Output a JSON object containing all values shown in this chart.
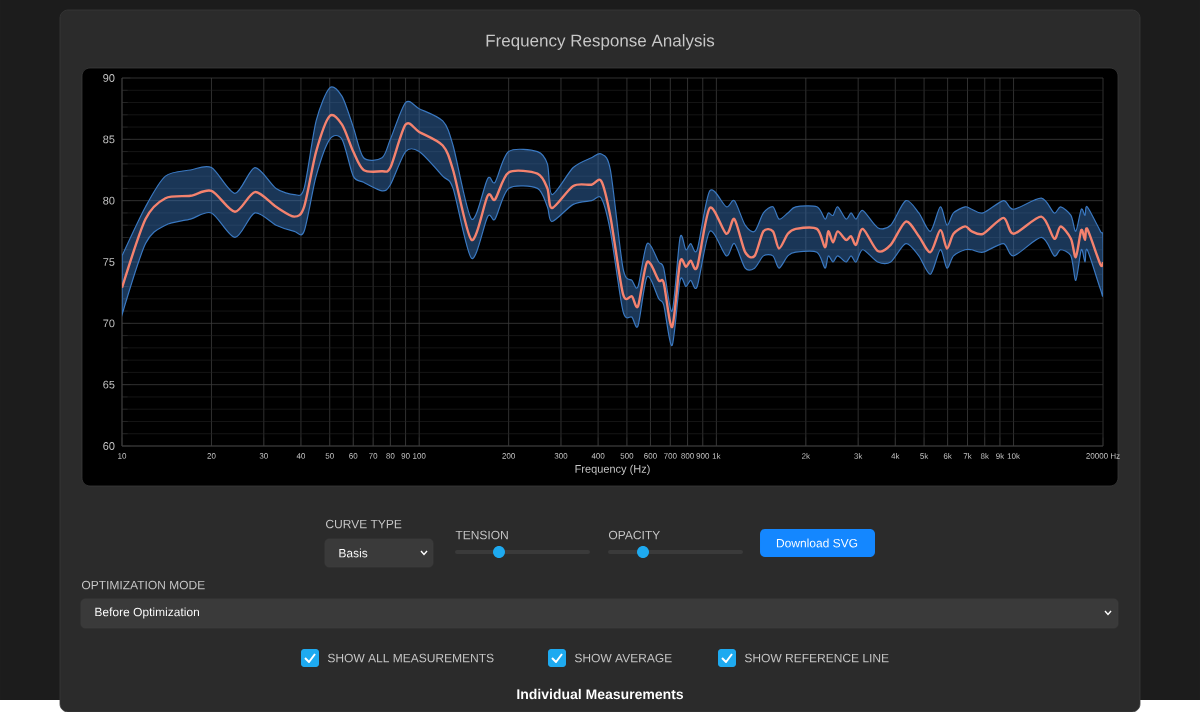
{
  "chart_data": {
    "type": "line",
    "title": "Frequency Response Analysis",
    "xlabel": "Frequency (Hz)",
    "log": "x",
    "grid": true,
    "marker": "none",
    "line_style": "solid",
    "xlim": [
      10,
      20000
    ],
    "ylim": [
      60,
      90
    ],
    "xticks": [
      10,
      20,
      30,
      40,
      50,
      60,
      70,
      80,
      90,
      100,
      200,
      300,
      400,
      500,
      600,
      700,
      800,
      900,
      {
        "value": 1000,
        "label": "1k"
      },
      {
        "value": 2000,
        "label": "2k"
      },
      {
        "value": 3000,
        "label": "3k"
      },
      {
        "value": 4000,
        "label": "4k"
      },
      {
        "value": 5000,
        "label": "5k"
      },
      {
        "value": 6000,
        "label": "6k"
      },
      {
        "value": 7000,
        "label": "7k"
      },
      {
        "value": 8000,
        "label": "8k"
      },
      {
        "value": 9000,
        "label": "9k"
      },
      {
        "value": 10000,
        "label": "10k"
      },
      {
        "value": 20000,
        "label": "20000 Hz"
      }
    ],
    "yticks": [
      60,
      65,
      70,
      75,
      80,
      85,
      90
    ],
    "x": [
      10,
      12,
      14,
      17,
      20,
      24,
      28,
      33,
      38,
      41,
      45,
      50,
      55,
      60,
      65,
      75,
      80,
      90,
      100,
      120,
      130,
      150,
      170,
      180,
      200,
      250,
      270,
      280,
      330,
      380,
      410,
      440,
      485,
      520,
      545,
      585,
      640,
      665,
      710,
      755,
      790,
      820,
      862,
      950,
      1080,
      1150,
      1250,
      1345,
      1440,
      1550,
      1625,
      1740,
      1850,
      2180,
      2320,
      2380,
      2470,
      2560,
      2730,
      2840,
      2950,
      3110,
      3490,
      3860,
      4340,
      4800,
      5250,
      5670,
      5970,
      6280,
      6870,
      7230,
      7900,
      9250,
      10000,
      12400,
      13700,
      14400,
      15600,
      16200,
      16900,
      17400,
      17700,
      19600,
      20000
    ],
    "series": [
      {
        "color": "#f4826e",
        "values": [
          72.9,
          78.5,
          80.2,
          80.4,
          80.8,
          79.1,
          80.7,
          79.5,
          78.7,
          79.5,
          84,
          86.9,
          86.2,
          84,
          82.5,
          82.4,
          82.7,
          86.2,
          85.6,
          84.5,
          82.5,
          76.8,
          80.4,
          80.1,
          82.3,
          82.2,
          81,
          79.4,
          81.2,
          81.3,
          81.6,
          78.7,
          72.4,
          72.2,
          71.4,
          75,
          73.5,
          73.3,
          69.7,
          75,
          74.6,
          75.1,
          74.6,
          79.4,
          77.3,
          78.5,
          75.8,
          75.5,
          77.5,
          77.5,
          76.1,
          77.3,
          77.7,
          77.7,
          76.2,
          77.5,
          76.6,
          77.5,
          76.8,
          77.1,
          76.4,
          77.7,
          75.9,
          76.4,
          78.3,
          77.1,
          75.8,
          77.6,
          76.1,
          77.3,
          77.9,
          77.5,
          77.3,
          78.6,
          77.3,
          78.7,
          76.9,
          77.9,
          76.9,
          75.4,
          77.6,
          76.8,
          77.7,
          74.8,
          75
        ],
        "lower": [
          70.7,
          76.5,
          78,
          78.5,
          79,
          77,
          79,
          78,
          77.5,
          77.5,
          82,
          85,
          85,
          82,
          81.5,
          80.8,
          81.3,
          84,
          84,
          82,
          81,
          75.3,
          78.7,
          78.5,
          81,
          81,
          79.5,
          78.3,
          79.7,
          80,
          80.2,
          77.5,
          71,
          70.5,
          69.8,
          73.8,
          72,
          71.5,
          68.2,
          73.5,
          73,
          73.5,
          73,
          77.5,
          75.5,
          76.5,
          74.5,
          74.5,
          75.5,
          75.5,
          74.5,
          75.5,
          75.8,
          75.8,
          74.5,
          75.5,
          75,
          75.5,
          75,
          75.5,
          75,
          76,
          75,
          75,
          76.5,
          75.5,
          74,
          76,
          74.5,
          75.5,
          76,
          76,
          75.8,
          76.5,
          75.5,
          77,
          75.5,
          76,
          75.5,
          73.5,
          76,
          75,
          76,
          72.8,
          72.5
        ],
        "upper": [
          75.5,
          79.5,
          82,
          82.5,
          82.7,
          80.6,
          82.7,
          81,
          80.5,
          81,
          86.5,
          89.2,
          88.5,
          86,
          83.5,
          83.5,
          85,
          88,
          87.5,
          86.5,
          84.5,
          78.5,
          81.8,
          81.5,
          84,
          84,
          83,
          80.5,
          82.7,
          83.5,
          83.8,
          82.5,
          74.5,
          73.5,
          73,
          76.5,
          75,
          74.5,
          71,
          77,
          76,
          76.5,
          76,
          80.8,
          79.5,
          80,
          78,
          77.5,
          79,
          79.5,
          78.5,
          79,
          79.5,
          79.5,
          78.5,
          79,
          78.8,
          79.5,
          78.5,
          79,
          78.5,
          79.2,
          77.8,
          78,
          80,
          79,
          77.5,
          79.5,
          78,
          79,
          79.5,
          79.3,
          79,
          80,
          79.3,
          80.2,
          79,
          79.5,
          78.8,
          77.5,
          79.3,
          78.8,
          79.5,
          77.5,
          77
        ]
      }
    ],
    "annotations": [
      "CURVE TYPE",
      "Basis",
      "TENSION",
      "OPACITY",
      "Download SVG",
      "OPTIMIZATION MODE",
      "Before Optimization",
      "SHOW ALL MEASUREMENTS",
      "SHOW AVERAGE",
      "SHOW REFERENCE LINE",
      "Individual Measurements"
    ]
  }
}
